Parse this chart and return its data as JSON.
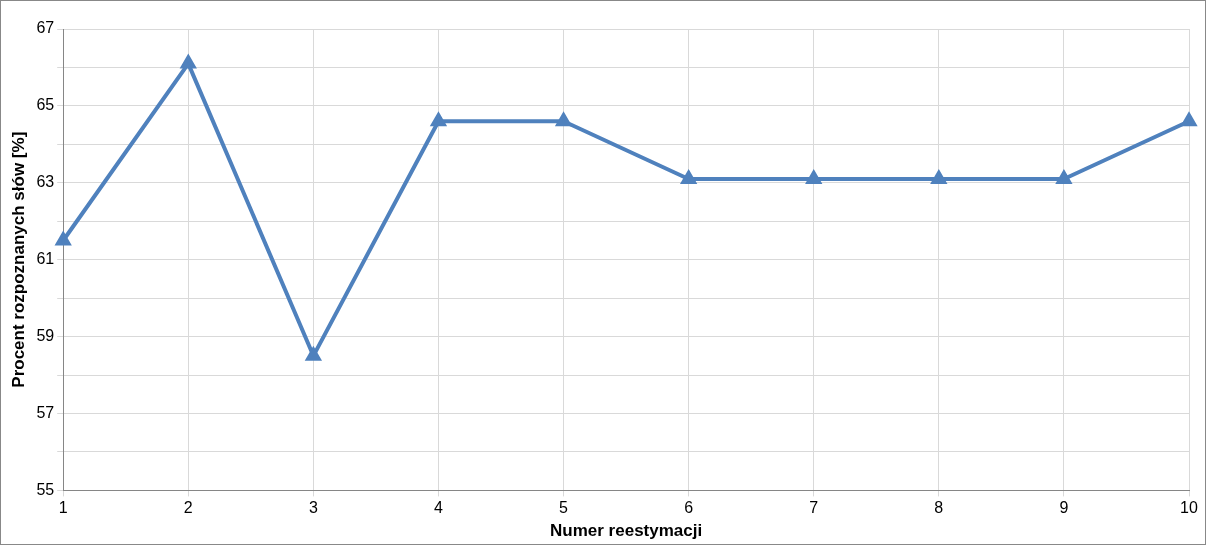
{
  "chart_data": {
    "type": "line",
    "xlabel": "Numer reestymacji",
    "ylabel": "Procent rozpoznanych słów [%]",
    "categories": [
      "1",
      "2",
      "3",
      "4",
      "5",
      "6",
      "7",
      "8",
      "9",
      "10"
    ],
    "series": [
      {
        "color": "#4f81bd",
        "values": [
          61.5,
          66.1,
          58.5,
          64.6,
          64.6,
          63.1,
          63.1,
          63.1,
          63.1,
          64.6
        ]
      }
    ],
    "ylim": [
      55,
      67
    ],
    "yticks": [
      55,
      {
        "value": 56,
        "label": null
      },
      57,
      {
        "value": 58,
        "label": null
      },
      59,
      {
        "value": 60,
        "label": null
      },
      61,
      {
        "value": 62,
        "label": null
      },
      63,
      {
        "value": 64,
        "label": null
      },
      65,
      {
        "value": 66,
        "label": null
      },
      67
    ],
    "grid": true,
    "legend": false,
    "marker": "triangle",
    "line_style": "solid"
  }
}
